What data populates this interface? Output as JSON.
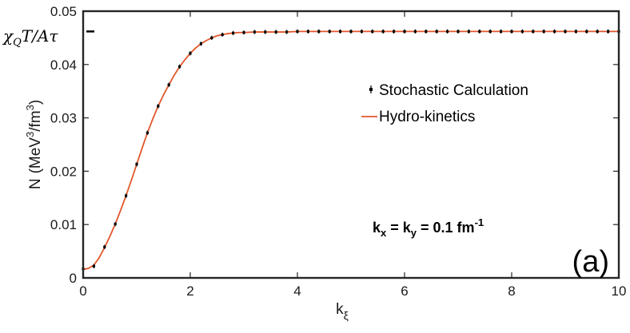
{
  "chart_data": {
    "type": "line",
    "xlabel": "k",
    "xlabel_sub": "ξ",
    "ylabel": "N",
    "ylabel_unit_parts": [
      "(MeV",
      "3",
      "/fm",
      "3",
      ")"
    ],
    "xlim": [
      0,
      10
    ],
    "ylim": [
      0,
      0.05
    ],
    "xticks": [
      0,
      2,
      4,
      6,
      8,
      10
    ],
    "xtick_labels": [
      "0",
      "2",
      "4",
      "6",
      "8",
      "10"
    ],
    "yticks": [
      0,
      0.01,
      0.02,
      0.03,
      0.04,
      0.05
    ],
    "ytick_labels": [
      "0",
      "0.01",
      "0.02",
      "0.03",
      "0.04",
      "0.05"
    ],
    "grid": false,
    "legend_position": "center-right",
    "asymptote": {
      "value": 0.0462,
      "label_parts": [
        "χ",
        "Q",
        "T/Aτ"
      ]
    },
    "annotation": {
      "parts": [
        "k",
        "x",
        " = k",
        "y",
        " = 0.1 fm",
        "-1"
      ]
    },
    "panel_label": "(a)",
    "series": [
      {
        "name": "Stochastic Calculation",
        "style": "points-with-errorbars",
        "color": "#000000",
        "x": [
          0,
          0.2,
          0.4,
          0.6,
          0.8,
          1.0,
          1.2,
          1.4,
          1.6,
          1.8,
          2.0,
          2.2,
          2.4,
          2.6,
          2.8,
          3.0,
          3.2,
          3.4,
          3.6,
          3.8,
          4.0,
          4.2,
          4.4,
          4.6,
          4.8,
          5.0,
          5.2,
          5.4,
          5.6,
          5.8,
          6.0,
          6.2,
          6.4,
          6.6,
          6.8,
          7.0,
          7.2,
          7.4,
          7.6,
          7.8,
          8.0,
          8.2,
          8.4,
          8.6,
          8.8,
          9.0,
          9.2,
          9.4,
          9.6,
          9.8,
          10.0
        ],
        "y": [
          0.0017,
          0.0022,
          0.0058,
          0.0101,
          0.0154,
          0.0213,
          0.0272,
          0.0322,
          0.0362,
          0.0396,
          0.0421,
          0.0439,
          0.045,
          0.0456,
          0.0459,
          0.046,
          0.0461,
          0.0461,
          0.0461,
          0.0461,
          0.0462,
          0.0462,
          0.0462,
          0.0462,
          0.0462,
          0.0462,
          0.0462,
          0.0462,
          0.0462,
          0.0462,
          0.0462,
          0.0462,
          0.0462,
          0.0462,
          0.0462,
          0.0462,
          0.0462,
          0.0462,
          0.0462,
          0.0462,
          0.0462,
          0.0462,
          0.0462,
          0.0462,
          0.0462,
          0.0462,
          0.0462,
          0.0462,
          0.0462,
          0.0462,
          0.0462
        ],
        "error": 0.0004
      },
      {
        "name": "Hydro-kinetics",
        "style": "line",
        "color": "#e2572b",
        "x": [
          0,
          0.1,
          0.2,
          0.3,
          0.4,
          0.5,
          0.6,
          0.7,
          0.8,
          0.9,
          1.0,
          1.1,
          1.2,
          1.3,
          1.4,
          1.5,
          1.6,
          1.7,
          1.8,
          1.9,
          2.0,
          2.1,
          2.2,
          2.3,
          2.4,
          2.5,
          2.6,
          2.7,
          2.8,
          2.9,
          3.0,
          3.2,
          3.4,
          3.6,
          3.8,
          4.0,
          5.0,
          6.0,
          7.0,
          8.0,
          9.0,
          10.0
        ],
        "y": [
          0.0016,
          0.0018,
          0.0024,
          0.0038,
          0.0057,
          0.0078,
          0.0101,
          0.0127,
          0.0154,
          0.0183,
          0.0213,
          0.0243,
          0.0272,
          0.0298,
          0.0322,
          0.0343,
          0.0362,
          0.038,
          0.0396,
          0.0409,
          0.0421,
          0.0431,
          0.0439,
          0.0445,
          0.045,
          0.0454,
          0.0456,
          0.0458,
          0.0459,
          0.046,
          0.046,
          0.0461,
          0.0461,
          0.0461,
          0.0461,
          0.0462,
          0.0462,
          0.0462,
          0.0462,
          0.0462,
          0.0462,
          0.0462
        ]
      }
    ]
  }
}
